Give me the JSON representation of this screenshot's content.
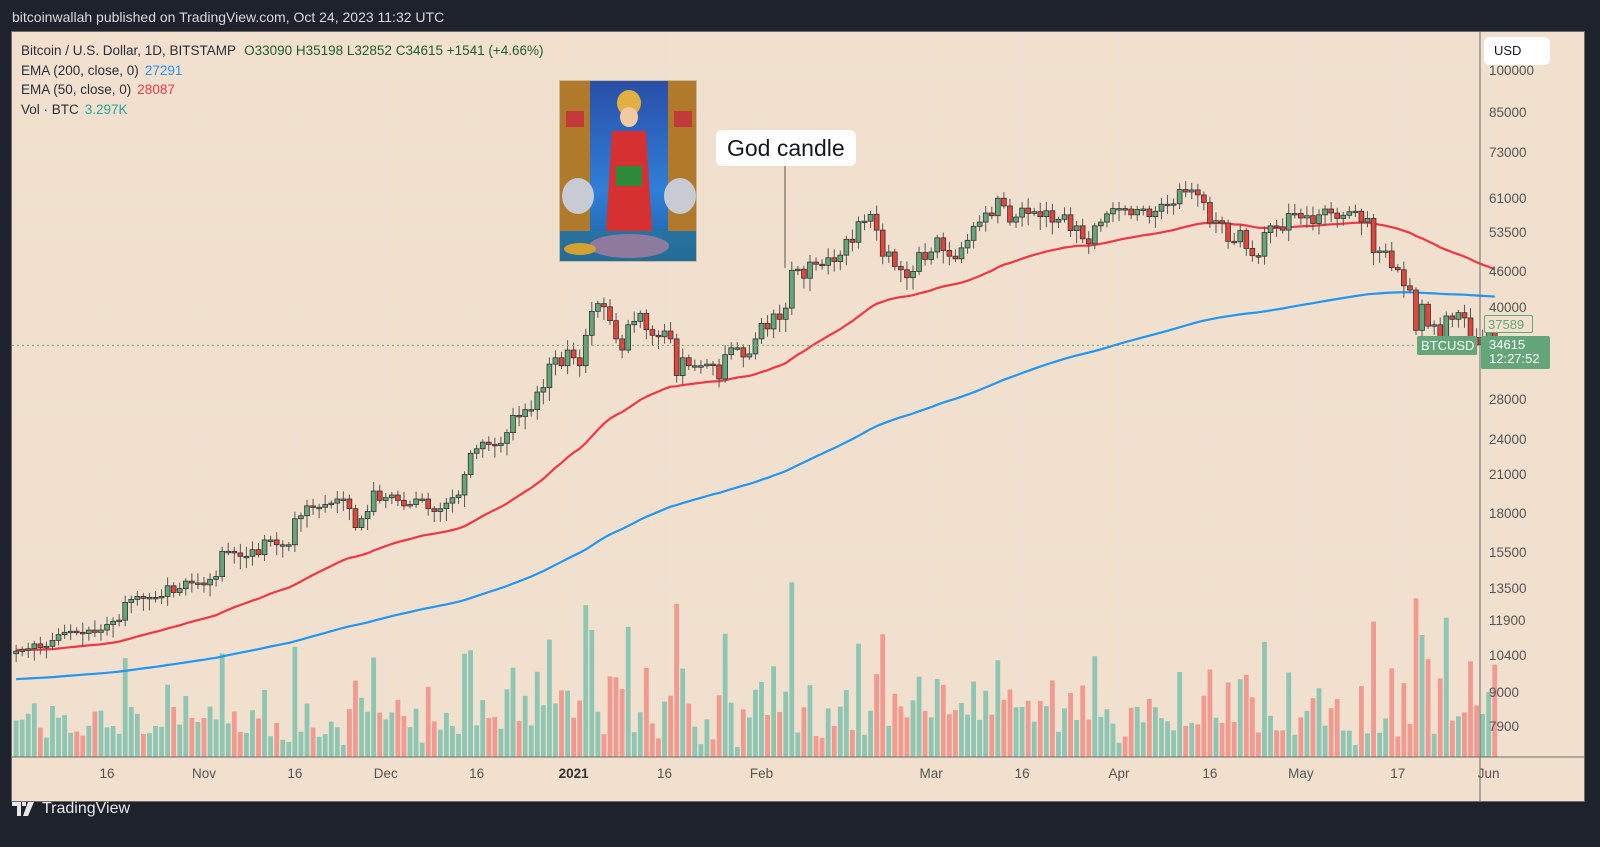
{
  "header": {
    "published": "bitcoinwallah published on TradingView.com, Oct 24, 2023 11:32 UTC"
  },
  "legend": {
    "symbol": "Bitcoin / U.S. Dollar, 1D, BITSTAMP",
    "ohlc": "O33090  H35198  L32852  C34615  +1541 (+4.66%)",
    "ema200_label": "EMA (200, close, 0)",
    "ema200_value": "27291",
    "ema50_label": "EMA (50, close, 0)",
    "ema50_value": "28087",
    "vol_label": "Vol · BTC",
    "vol_value": "3.297K"
  },
  "currency_button": "USD",
  "annotation": {
    "text": "God candle"
  },
  "price_tags": {
    "ema_tag": "37589",
    "symbol_tag": "BTCUSD",
    "last_price": "34615",
    "countdown": "12:27:52"
  },
  "footer": {
    "brand": "TradingView"
  },
  "colors": {
    "background": "#f2e0cf",
    "up": "#64a57a",
    "down": "#e0463c",
    "ema50": "#f23645",
    "ema200": "#2196f3",
    "vol_up": "#8fc6b3",
    "vol_down": "#f19a90",
    "grid": "#e9e1d8"
  },
  "chart_data": {
    "type": "candlestick",
    "title": "Bitcoin / U.S. Dollar, 1D, BITSTAMP",
    "scale": "log",
    "y_ticks": [
      100000,
      85000,
      73000,
      61000,
      53500,
      46000,
      40000,
      28000,
      24000,
      21000,
      18000,
      15500,
      13500,
      11900,
      10400,
      9000,
      7900
    ],
    "x_ticks": [
      {
        "label": "16",
        "day": 15
      },
      {
        "label": "Nov",
        "day": 31
      },
      {
        "label": "16",
        "day": 46
      },
      {
        "label": "Dec",
        "day": 61
      },
      {
        "label": "16",
        "day": 76
      },
      {
        "label": "2021",
        "day": 92,
        "bold": true
      },
      {
        "label": "16",
        "day": 107
      },
      {
        "label": "Feb",
        "day": 123
      },
      {
        "label": "Mar",
        "day": 151
      },
      {
        "label": "16",
        "day": 166
      },
      {
        "label": "Apr",
        "day": 182
      },
      {
        "label": "16",
        "day": 197
      },
      {
        "label": "May",
        "day": 212
      },
      {
        "label": "17",
        "day": 228
      },
      {
        "label": "Jun",
        "day": 243
      }
    ],
    "start_date": "2020-10-03",
    "closes": [
      10600,
      10650,
      10700,
      10900,
      10750,
      10800,
      11050,
      11300,
      11400,
      11450,
      11400,
      11350,
      11500,
      11400,
      11500,
      11750,
      11900,
      11950,
      12800,
      12950,
      13100,
      13000,
      13050,
      13050,
      13100,
      13650,
      13300,
      13500,
      13900,
      13800,
      13800,
      13700,
      14000,
      14150,
      15600,
      15600,
      15500,
      15300,
      15300,
      15700,
      15400,
      16300,
      16300,
      16000,
      16000,
      16000,
      17700,
      17900,
      18600,
      18500,
      18500,
      18700,
      18800,
      19100,
      19100,
      18400,
      17100,
      17700,
      18200,
      19700,
      19000,
      19200,
      19400,
      19000,
      18600,
      18700,
      19100,
      19100,
      18400,
      18200,
      18400,
      18800,
      19200,
      19400,
      21000,
      22800,
      23200,
      23800,
      23600,
      23500,
      23700,
      24700,
      26400,
      26300,
      27000,
      27000,
      28900,
      29400,
      32200,
      33000,
      32000,
      34000,
      33000,
      32000,
      36000,
      39500,
      40700,
      40200,
      38100,
      35500,
      34000,
      37500,
      38000,
      39200,
      36800,
      36000,
      35800,
      36600,
      35500,
      30800,
      33000,
      32000,
      32000,
      32000,
      32200,
      32100,
      30400,
      33400,
      34300,
      34300,
      33100,
      33500,
      35500,
      37700,
      36900,
      39100,
      38300,
      40000,
      46300,
      46500,
      44900,
      47800,
      47400,
      47200,
      48600,
      47900,
      49100,
      52200,
      51600,
      55900,
      56000,
      57500,
      54100,
      48900,
      49700,
      47000,
      46400,
      45000,
      46100,
      49600,
      48300,
      49700,
      52500,
      50000,
      48900,
      48400,
      50500,
      52000,
      54900,
      55800,
      57800,
      57200,
      61200,
      59400,
      55800,
      56900,
      58900,
      57700,
      58100,
      57000,
      58300,
      55800,
      56400,
      57400,
      54000,
      55000,
      52300,
      51300,
      55000,
      55800,
      57600,
      58800,
      58800,
      58700,
      57400,
      58600,
      58700,
      57000,
      58200,
      59800,
      59800,
      59900,
      63300,
      62700,
      63200,
      62000,
      60200,
      55600,
      56100,
      55600,
      51800,
      51700,
      54000,
      50400,
      49000,
      48900,
      53600,
      55000,
      54800,
      54100,
      57700,
      57700,
      56700,
      57200,
      55500,
      57400,
      58700,
      57800,
      56600,
      57300,
      58100,
      58200,
      55800,
      56600,
      49600,
      49900,
      49900,
      46800,
      46400,
      43600,
      42900,
      36700,
      40600,
      37300,
      37500,
      34700,
      38800,
      38300,
      39300,
      38500,
      35700,
      34700,
      35700,
      37589,
      34615
    ],
    "volume_note": "Volume bars shown beneath candles, colored by candle direction"
  }
}
